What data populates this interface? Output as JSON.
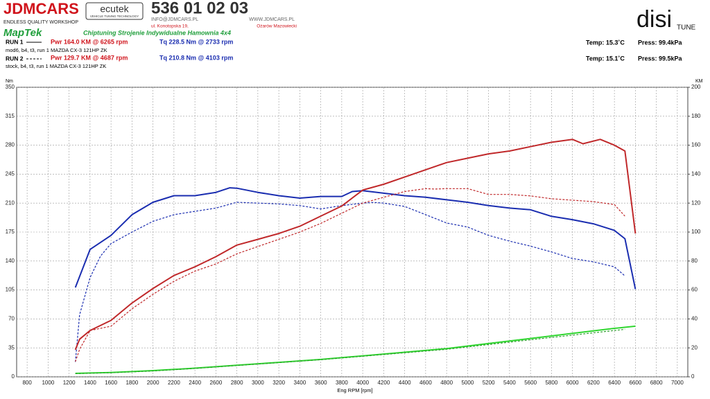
{
  "header": {
    "brand": "JDMCARS",
    "brand_sub": "ENDLESS QUALITY WORKSHOP",
    "ecutek": "ecutek",
    "ecutek_sub": "VEHICLE TUNING TECHNOLOGY",
    "phone": "536 01 02 03",
    "email": "INFO@JDMCARS.PL",
    "web": "WWW.JDMCARS.PL",
    "street": "ul. Konotopska 19,",
    "city": "Ożarów Mazowiecki",
    "maptek": "MapTek",
    "tagline": "Chiptuning Strojenie Indywidualne Hamownia 4x4",
    "disi": "disi",
    "tune": "TUNE"
  },
  "runs": [
    {
      "label": "RUN 1",
      "pwr": "Pwr  164.0 KM @ 6265 rpm",
      "tq": "Tq  228.5 Nm @ 2733 rpm",
      "desc": "mod6, b4, t3, run 1 MAZDA CX-3 121HP ZK",
      "temp": "Temp: 15.3˚C",
      "press": "Press: 99.4kPa"
    },
    {
      "label": "RUN 2",
      "pwr": "Pwr  129.7 KM @ 4687 rpm",
      "tq": "Tq  210.8 Nm @ 4103 rpm",
      "desc": "stock, b4, t3, run 1 MAZDA CX-3 121HP ZK",
      "temp": "Temp: 15.1˚C",
      "press": "Press: 99.5kPa"
    }
  ],
  "chart_data": {
    "type": "line",
    "ylabel": "Nm",
    "y2label": "KM",
    "xlabel": "Eng RPM [rpm]",
    "grid": true,
    "xlim": [
      700,
      7100
    ],
    "xticks": [
      800,
      1000,
      1200,
      1400,
      1600,
      1800,
      2000,
      2200,
      2400,
      2600,
      2800,
      3000,
      3200,
      3400,
      3600,
      3800,
      4000,
      4200,
      4400,
      4600,
      4800,
      5000,
      5200,
      5400,
      5600,
      5800,
      6000,
      6200,
      6400,
      6600,
      6800,
      7000
    ],
    "ylim": [
      0,
      350
    ],
    "yticks": [
      0,
      35,
      70,
      105,
      140,
      175,
      210,
      245,
      280,
      315,
      350
    ],
    "y2lim": [
      0,
      200
    ],
    "y2ticks": [
      0,
      20,
      40,
      60,
      80,
      100,
      120,
      140,
      160,
      180,
      200
    ],
    "series": [
      {
        "color": "#1a2db0",
        "dash": false,
        "axis": "y",
        "x": [
          1260,
          1400,
          1600,
          1800,
          2000,
          2200,
          2400,
          2600,
          2733,
          2800,
          3000,
          3200,
          3400,
          3600,
          3800,
          3900,
          4000,
          4200,
          4400,
          4600,
          4800,
          5000,
          5200,
          5400,
          5600,
          5800,
          6000,
          6200,
          6400,
          6500,
          6600
        ],
        "values": [
          108,
          154,
          171,
          196,
          211,
          219,
          219,
          223,
          228.5,
          228,
          223,
          219,
          216,
          218,
          218,
          224,
          225,
          222,
          219,
          217,
          214,
          211,
          207,
          204,
          202,
          194,
          190,
          185,
          177,
          167,
          106
        ]
      },
      {
        "color": "#1a2db0",
        "dash": true,
        "axis": "y",
        "x": [
          1260,
          1300,
          1400,
          1500,
          1600,
          1800,
          2000,
          2200,
          2400,
          2600,
          2800,
          3000,
          3200,
          3400,
          3600,
          3800,
          4000,
          4103,
          4200,
          4400,
          4600,
          4800,
          5000,
          5200,
          5400,
          5600,
          5800,
          6000,
          6200,
          6400,
          6500
        ],
        "values": [
          18,
          75,
          120,
          146,
          161,
          175,
          188,
          196,
          200,
          204,
          211,
          210,
          209,
          207,
          203,
          207,
          210,
          210.8,
          210,
          206,
          196,
          186,
          181,
          171,
          164,
          158,
          151,
          143,
          139,
          133,
          122
        ]
      },
      {
        "color": "#c0282a",
        "dash": false,
        "axis": "y2",
        "x": [
          1260,
          1300,
          1400,
          1600,
          1800,
          2000,
          2200,
          2400,
          2600,
          2800,
          3000,
          3200,
          3400,
          3600,
          3800,
          4000,
          4200,
          4400,
          4600,
          4800,
          5000,
          5200,
          5400,
          5600,
          5800,
          6000,
          6100,
          6265,
          6400,
          6500,
          6600
        ],
        "values": [
          18.7,
          26,
          32,
          39,
          51,
          61,
          70,
          76,
          83,
          91,
          95,
          99,
          104,
          111,
          118,
          129,
          133,
          138,
          143,
          148,
          151,
          154,
          156,
          159,
          162,
          164,
          161,
          164,
          160,
          156,
          99
        ]
      },
      {
        "color": "#c0282a",
        "dash": true,
        "axis": "y2",
        "x": [
          1260,
          1300,
          1400,
          1600,
          1800,
          2000,
          2200,
          2400,
          2600,
          2800,
          3000,
          3200,
          3400,
          3600,
          3800,
          4000,
          4200,
          4400,
          4600,
          4687,
          4800,
          5000,
          5200,
          5400,
          5600,
          5800,
          6000,
          6200,
          6400,
          6500
        ],
        "values": [
          10.5,
          19,
          32,
          35,
          47,
          57,
          66,
          73,
          78,
          85,
          90,
          95,
          100,
          106,
          113,
          120,
          124,
          128,
          130,
          129.7,
          130,
          130,
          126,
          126,
          125,
          123,
          122,
          121,
          119,
          111
        ]
      },
      {
        "color": "#2fd62f",
        "dash": false,
        "axis": "y2",
        "x": [
          1260,
          1600,
          2000,
          2400,
          2800,
          3200,
          3600,
          4000,
          4400,
          4800,
          5200,
          5600,
          6000,
          6400,
          6600
        ],
        "values": [
          2.4,
          3,
          4.3,
          6,
          8,
          10,
          12,
          14.5,
          17,
          19.5,
          23,
          26.5,
          30,
          33.5,
          35
        ]
      },
      {
        "color": "#2fa02f",
        "dash": true,
        "axis": "y2",
        "x": [
          1260,
          1600,
          2000,
          2400,
          2800,
          3200,
          3600,
          4000,
          4400,
          4800,
          5200,
          5600,
          6000,
          6400,
          6500
        ],
        "values": [
          2.2,
          2.8,
          4,
          5.8,
          7.8,
          9.8,
          11.8,
          14.2,
          16.6,
          19,
          22.3,
          25.6,
          28.8,
          32,
          32.8
        ]
      }
    ]
  }
}
